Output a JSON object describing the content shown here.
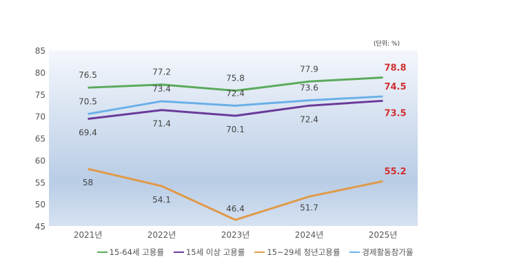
{
  "chart_data": {
    "type": "line",
    "unit_note": "(단위: %)",
    "categories": [
      "2021년",
      "2022년",
      "2023년",
      "2024년",
      "2025년"
    ],
    "ylim": [
      45,
      85
    ],
    "yticks": [
      45,
      50,
      55,
      60,
      65,
      70,
      75,
      80,
      85
    ],
    "grid": false,
    "legend_position": "bottom",
    "highlight_color": "#d03030",
    "series": [
      {
        "name": "15-64세 고용률",
        "color": "#5aaa5a",
        "values": [
          76.5,
          77.2,
          75.8,
          77.9,
          78.8
        ],
        "labels": [
          "76.5",
          "77.2",
          "75.8",
          "77.9",
          "78.8"
        ]
      },
      {
        "name": "15세 이상 고용률",
        "color": "#6a3a9a",
        "values": [
          69.4,
          71.4,
          70.1,
          72.4,
          73.5
        ],
        "labels": [
          "69.4",
          "71.4",
          "70.1",
          "72.4",
          "73.5"
        ]
      },
      {
        "name": "15~29세 청년고용률",
        "color": "#e09a48",
        "values": [
          58,
          54.1,
          46.4,
          51.7,
          55.2
        ],
        "labels": [
          "58",
          "54.1",
          "46.4",
          "51.7",
          "55.2"
        ]
      },
      {
        "name": "경제활동참가율",
        "color": "#6ab0e8",
        "values": [
          70.5,
          73.4,
          72.4,
          73.6,
          74.5
        ],
        "labels": [
          "70.5",
          "73.4",
          "72.4",
          "73.6",
          "74.5"
        ]
      }
    ]
  }
}
